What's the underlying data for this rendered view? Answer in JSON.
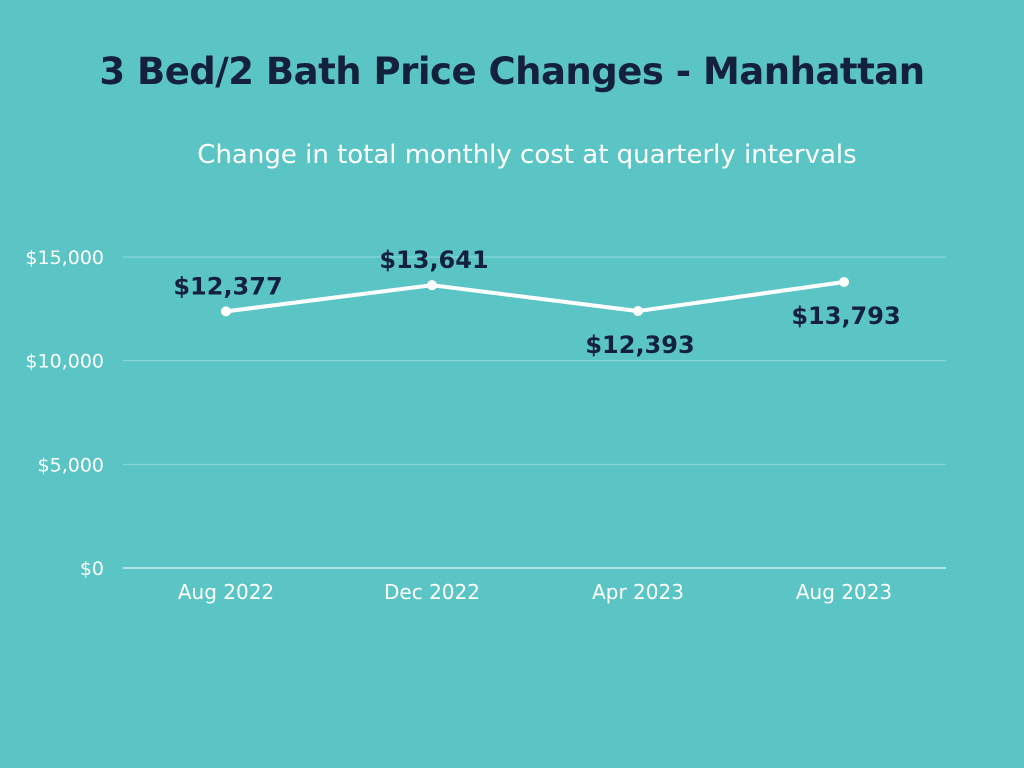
{
  "chart_data": {
    "type": "line",
    "title": "3 Bed/2 Bath Price Changes - Manhattan",
    "subtitle": "Change in total monthly cost at quarterly intervals",
    "categories": [
      "Aug 2022",
      "Dec 2022",
      "Apr 2023",
      "Aug 2023"
    ],
    "series": [
      {
        "name": "Total monthly cost",
        "values": [
          12377,
          13641,
          12393,
          13793
        ],
        "labels": [
          "$12,377",
          "$13,641",
          "$12,393",
          "$13,793"
        ],
        "label_position": [
          "above",
          "above",
          "below",
          "below"
        ]
      }
    ],
    "ylim": [
      0,
      15000
    ],
    "yticks": [
      0,
      5000,
      10000,
      15000
    ],
    "ytick_labels": [
      "$0",
      "$5,000",
      "$10,000",
      "$15,000"
    ],
    "xlabel": "",
    "ylabel": "",
    "grid": true
  },
  "colors": {
    "background": "#5bc5c6",
    "line": "#ffffff",
    "gridline": "#8fd8d8",
    "title": "#14213d",
    "label": "#14213d"
  }
}
